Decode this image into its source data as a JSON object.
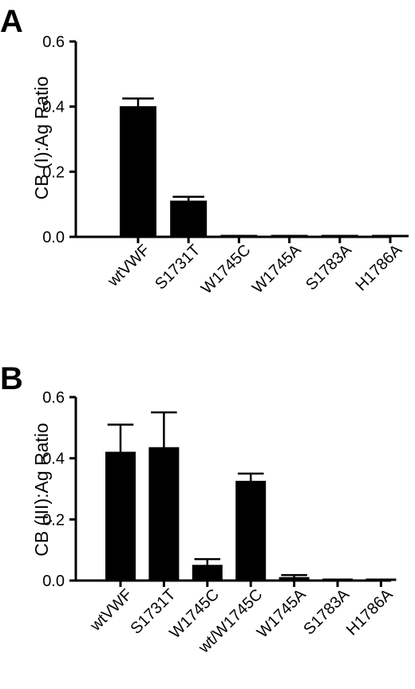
{
  "chart_data": [
    {
      "type": "bar",
      "panel_label": "A",
      "title": "",
      "xlabel": "",
      "ylabel": "CB (I):Ag Ratio",
      "ylim": [
        0,
        0.6
      ],
      "yticks": [
        0.0,
        0.2,
        0.4,
        0.6
      ],
      "ytick_labels": [
        "0.0",
        "0.2",
        "0.4",
        "0.6"
      ],
      "grid": false,
      "legend": "none",
      "categories": [
        "wtVWF",
        "S1731T",
        "W1745C",
        "W1745A",
        "S1783A",
        "H1786A"
      ],
      "values": [
        0.4,
        0.11,
        0.0,
        0.0,
        0.0,
        0.0
      ],
      "errors": [
        0.025,
        0.013,
        0.0,
        0.0,
        0.0,
        0.0
      ],
      "bar_color": "#000000"
    },
    {
      "type": "bar",
      "panel_label": "B",
      "title": "",
      "xlabel": "",
      "ylabel": "CB (III):Ag Ratio",
      "ylim": [
        0,
        0.6
      ],
      "yticks": [
        0.0,
        0.2,
        0.4,
        0.6
      ],
      "ytick_labels": [
        "0.0",
        "0.2",
        "0.4",
        "0.6"
      ],
      "grid": false,
      "legend": "none",
      "categories": [
        "wtVWF",
        "S1731T",
        "W1745C",
        "wt/W1745C",
        "W1745A",
        "S1783A",
        "H1786A"
      ],
      "values": [
        0.42,
        0.435,
        0.05,
        0.325,
        0.01,
        0.0,
        0.0
      ],
      "errors": [
        0.09,
        0.115,
        0.02,
        0.025,
        0.008,
        0.0,
        0.0
      ],
      "bar_color": "#000000"
    }
  ]
}
